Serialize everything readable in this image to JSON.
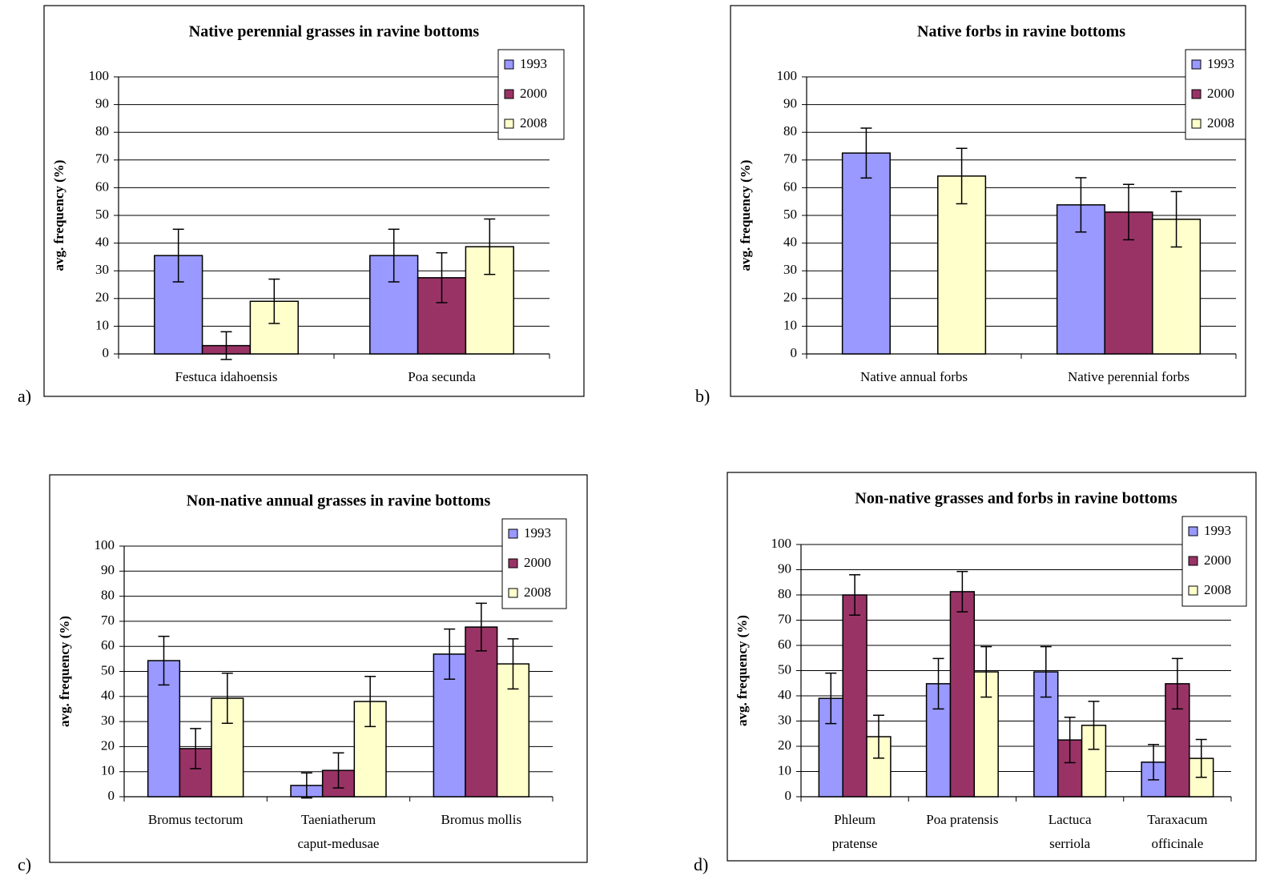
{
  "chart_data": [
    {
      "type": "bar",
      "label": "a)",
      "title": "Native perennial grasses in ravine bottoms",
      "y_label": "avg. frequency (%)",
      "categories": [
        [
          "Festuca idahoensis"
        ],
        [
          "Poa secunda"
        ]
      ],
      "series": [
        {
          "name": "1993",
          "color": "#9999ff",
          "values": [
            35.5,
            35.5
          ],
          "errors": [
            9.5,
            9.5
          ]
        },
        {
          "name": "2000",
          "color": "#993366",
          "values": [
            3,
            27.5
          ],
          "errors": [
            5,
            9
          ]
        },
        {
          "name": "2008",
          "color": "#ffffcc",
          "values": [
            19,
            38.7
          ],
          "errors": [
            8,
            10
          ]
        }
      ],
      "ylim": [
        0,
        100
      ],
      "yticks": [
        0,
        10,
        20,
        30,
        40,
        50,
        60,
        70,
        80,
        90,
        100
      ],
      "grid": true,
      "legend": "top-right"
    },
    {
      "type": "bar",
      "label": "b)",
      "title": "Native forbs in ravine bottoms",
      "y_label": "avg. frequency (%)",
      "categories": [
        [
          "Native annual forbs"
        ],
        [
          "Native perennial forbs"
        ]
      ],
      "series": [
        {
          "name": "1993",
          "color": "#9999ff",
          "values": [
            72.5,
            53.8
          ],
          "errors": [
            9,
            9.8
          ]
        },
        {
          "name": "2000",
          "color": "#993366",
          "values": [
            null,
            51.2
          ],
          "errors": [
            null,
            10
          ]
        },
        {
          "name": "2008",
          "color": "#ffffcc",
          "values": [
            64.2,
            48.6
          ],
          "errors": [
            10,
            10
          ]
        }
      ],
      "ylim": [
        0,
        100
      ],
      "yticks": [
        0,
        10,
        20,
        30,
        40,
        50,
        60,
        70,
        80,
        90,
        100
      ],
      "grid": true,
      "legend": "top-right"
    },
    {
      "type": "bar",
      "label": "c)",
      "title": "Non-native annual grasses in ravine bottoms",
      "y_label": "avg. frequency (%)",
      "categories": [
        [
          "Bromus tectorum"
        ],
        [
          "Taeniatherum",
          "caput-medusae"
        ],
        [
          "Bromus mollis"
        ]
      ],
      "series": [
        {
          "name": "1993",
          "color": "#9999ff",
          "values": [
            54.3,
            4.5,
            56.9
          ],
          "errors": [
            9.7,
            5,
            10
          ]
        },
        {
          "name": "2000",
          "color": "#993366",
          "values": [
            19.2,
            10.5,
            67.7
          ],
          "errors": [
            8,
            7,
            9.5
          ]
        },
        {
          "name": "2008",
          "color": "#ffffcc",
          "values": [
            39.3,
            38,
            53
          ],
          "errors": [
            10,
            10,
            10
          ]
        }
      ],
      "ylim": [
        0,
        100
      ],
      "yticks": [
        0,
        10,
        20,
        30,
        40,
        50,
        60,
        70,
        80,
        90,
        100
      ],
      "grid": true,
      "legend": "top-right"
    },
    {
      "type": "bar",
      "label": "d)",
      "title": "Non-native grasses and forbs in ravine bottoms",
      "y_label": "avg. frequency (%)",
      "categories": [
        [
          "Phleum",
          "pratense"
        ],
        [
          "Poa pratensis"
        ],
        [
          "Lactuca",
          "serriola"
        ],
        [
          "Taraxacum",
          "officinale"
        ]
      ],
      "series": [
        {
          "name": "1993",
          "color": "#9999ff",
          "values": [
            39,
            44.8,
            49.5,
            13.7
          ],
          "errors": [
            10,
            10,
            10,
            7
          ]
        },
        {
          "name": "2000",
          "color": "#993366",
          "values": [
            80,
            81.3,
            22.5,
            44.8
          ],
          "errors": [
            8,
            8,
            9,
            10
          ]
        },
        {
          "name": "2008",
          "color": "#ffffcc",
          "values": [
            23.8,
            49.5,
            28.3,
            15.2
          ],
          "errors": [
            8.5,
            10,
            9.5,
            7.5
          ]
        }
      ],
      "ylim": [
        0,
        100
      ],
      "yticks": [
        0,
        10,
        20,
        30,
        40,
        50,
        60,
        70,
        80,
        90,
        100
      ],
      "grid": true,
      "legend": "top-right"
    }
  ]
}
